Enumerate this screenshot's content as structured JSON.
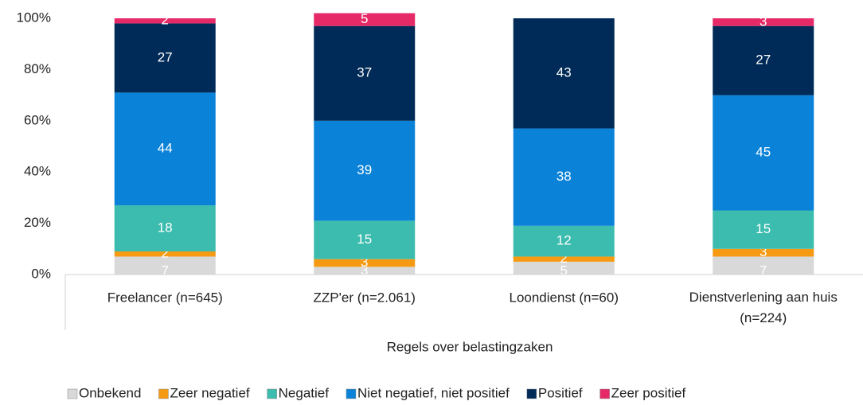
{
  "chart_data": {
    "type": "stacked_bar",
    "x_label": "Regels over belastingzaken",
    "categories": [
      "Freelancer (n=645)",
      "ZZP'er (n=2.061)",
      "Loondienst (n=60)",
      "Dienstverlening aan huis (n=224)"
    ],
    "series": [
      {
        "name": "Onbekend",
        "color": "#d9d9d9",
        "values": [
          7,
          3,
          5,
          7
        ]
      },
      {
        "name": "Zeer negatief",
        "color": "#f59a12",
        "values": [
          2,
          3,
          2,
          3
        ]
      },
      {
        "name": "Negatief",
        "color": "#3cbcae",
        "values": [
          18,
          15,
          12,
          15
        ]
      },
      {
        "name": "Niet negatief, niet positief",
        "color": "#0a82d8",
        "values": [
          44,
          39,
          38,
          45
        ]
      },
      {
        "name": "Positief",
        "color": "#002a57",
        "values": [
          27,
          37,
          43,
          27
        ]
      },
      {
        "name": "Zeer positief",
        "color": "#e62a68",
        "values": [
          2,
          5,
          null,
          3
        ]
      }
    ],
    "ylim": [
      0,
      100
    ],
    "yticks": [
      {
        "value": 0,
        "label": "0%"
      },
      {
        "value": 20,
        "label": "20%"
      },
      {
        "value": 40,
        "label": "40%"
      },
      {
        "value": 60,
        "label": "60%"
      },
      {
        "value": 80,
        "label": "80%"
      },
      {
        "value": 100,
        "label": "100%"
      }
    ],
    "legend": "bottom"
  }
}
